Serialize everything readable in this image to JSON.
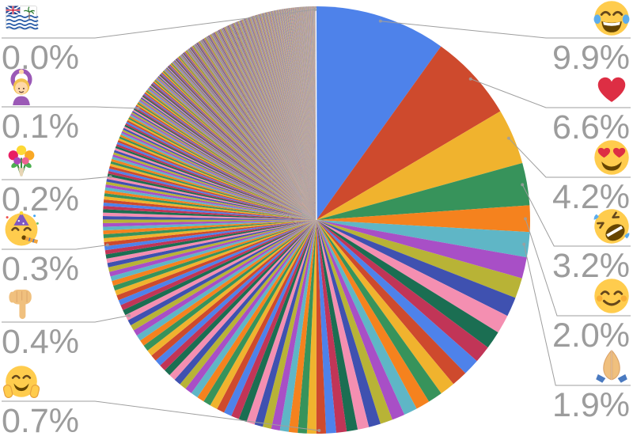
{
  "chart_data": {
    "type": "pie",
    "title": "",
    "description": "Pie chart of emoji usage share with emoji callout labels on both sides",
    "unit": "%",
    "direction": "clockwise",
    "start_angle_deg": 0,
    "total": 100,
    "right_labels": [
      {
        "icon": "face-with-tears-of-joy",
        "label": "9.9%",
        "value": 9.9
      },
      {
        "icon": "red-heart",
        "label": "6.6%",
        "value": 6.6
      },
      {
        "icon": "smiling-face-with-heart-eyes",
        "label": "4.2%",
        "value": 4.2
      },
      {
        "icon": "rolling-on-the-floor-laughing",
        "label": "3.2%",
        "value": 3.2
      },
      {
        "icon": "smiling-face-with-smiling-eyes",
        "label": "2.0%",
        "value": 2.0
      },
      {
        "icon": "folded-hands",
        "label": "1.9%",
        "value": 1.9
      }
    ],
    "left_labels": [
      {
        "icon": "flag-british-indian-ocean-territory",
        "label": "0.0%",
        "value": 0.0,
        "cum_mid": 99.9
      },
      {
        "icon": "person-gesturing-ok",
        "label": "0.1%",
        "value": 0.1,
        "cum_mid": 83.9
      },
      {
        "icon": "bouquet",
        "label": "0.2%",
        "value": 0.2,
        "cum_mid": 78.3
      },
      {
        "icon": "partying-face",
        "label": "0.3%",
        "value": 0.3,
        "cum_mid": 73.1
      },
      {
        "icon": "backhand-index-pointing-down",
        "label": "0.4%",
        "value": 0.4,
        "cum_mid": 67.5
      },
      {
        "icon": "smiling-face-with-open-hands",
        "label": "0.7%",
        "value": 0.7,
        "cum_mid": 49.8
      }
    ],
    "palette": [
      "#4e82ea",
      "#ce4a2d",
      "#f0b32e",
      "#37935b",
      "#f5821e",
      "#5fb6c6",
      "#a84fc6",
      "#b8b336",
      "#3f51b0",
      "#f48fb1",
      "#1b6e52",
      "#c13557"
    ],
    "tail_distribution": {
      "anchors": [
        [
          27.8,
          1.6
        ],
        [
          50,
          0.7
        ],
        [
          67.5,
          0.42
        ],
        [
          73.1,
          0.3
        ],
        [
          78.3,
          0.2
        ],
        [
          83.9,
          0.1
        ],
        [
          92,
          0.035
        ],
        [
          100,
          0.006
        ]
      ],
      "min_slice": 0.005
    },
    "text_color": "#9c9c9c",
    "line_color": "#9e9e9e",
    "background": "#ffffff"
  }
}
